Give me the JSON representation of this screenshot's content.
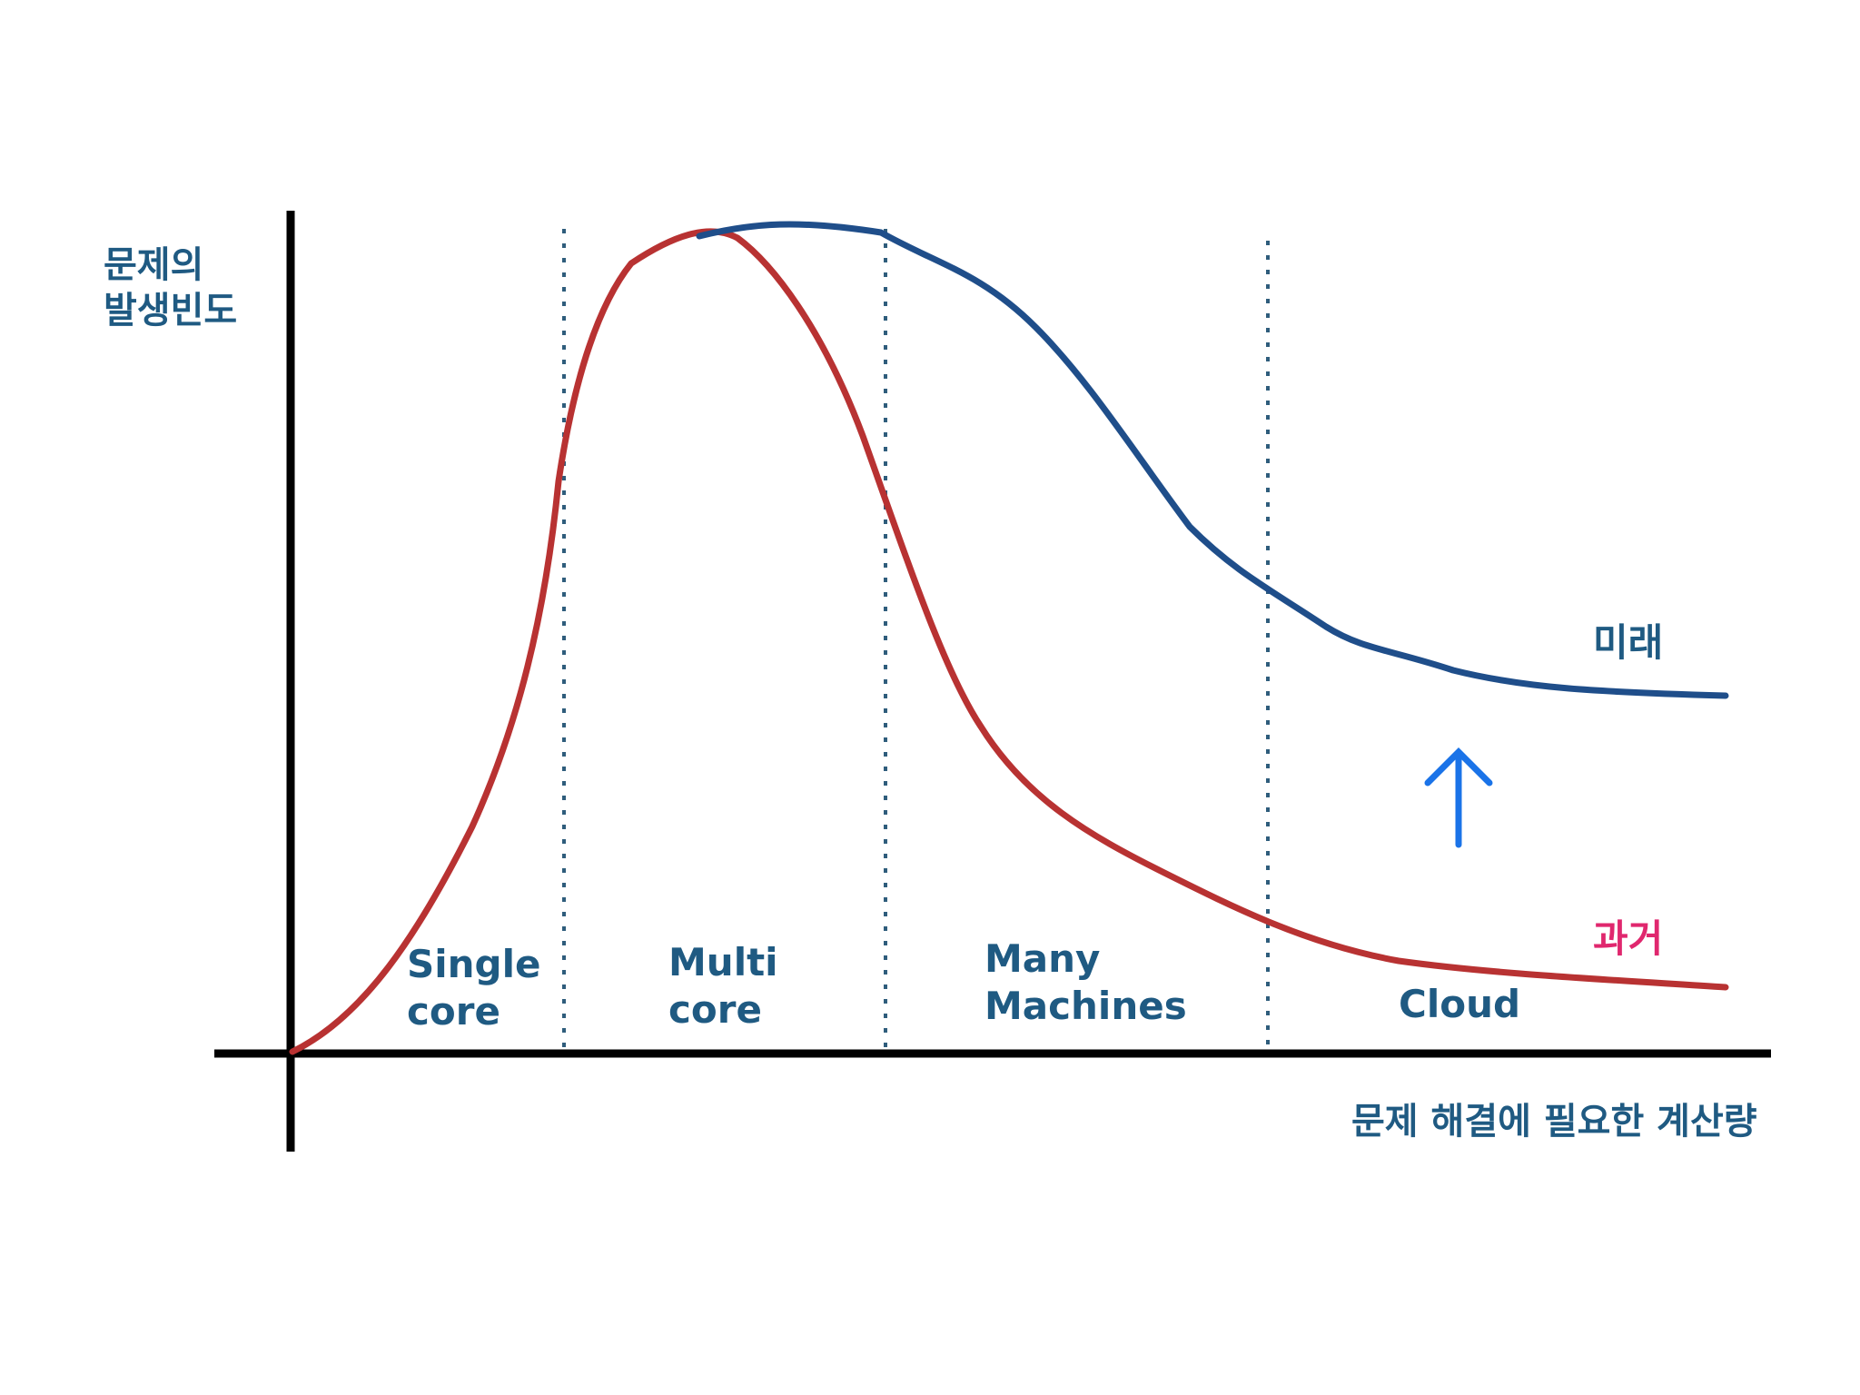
{
  "y_axis_label": [
    "문제의",
    "발생빈도"
  ],
  "x_axis_label": "문제 해결에 필요한 계산량",
  "regions": [
    {
      "label": [
        "Single",
        "core"
      ]
    },
    {
      "label": [
        "Multi",
        "core"
      ]
    },
    {
      "label": [
        "Many",
        "Machines"
      ]
    },
    {
      "label": [
        "Cloud"
      ]
    }
  ],
  "curves": {
    "future": {
      "label": "미래",
      "color": "#1f4e8a"
    },
    "past": {
      "label": "과거",
      "color": "#b83232"
    }
  },
  "colors": {
    "text": "#1f5a82",
    "past_label": "#e0276e",
    "arrow": "#1a73e8",
    "axis": "#000000",
    "divider": "#2f5d7c"
  },
  "arrow": {
    "direction": "up",
    "icon": "up-arrow-icon"
  }
}
